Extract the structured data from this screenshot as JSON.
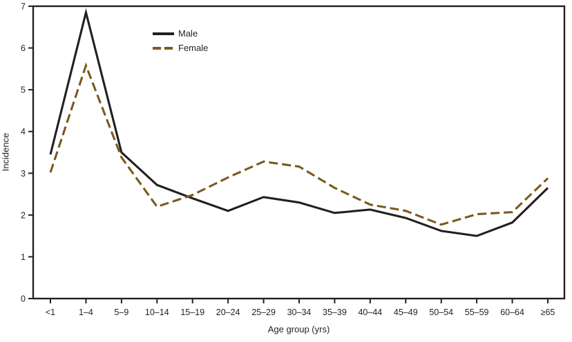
{
  "chart_data": {
    "type": "line",
    "title": "",
    "xlabel": "Age group (yrs)",
    "ylabel": "Incidence",
    "ylim": [
      0,
      7
    ],
    "yticks": [
      0,
      1,
      2,
      3,
      4,
      5,
      6,
      7
    ],
    "grid": false,
    "legend_position": "upper-left-inside",
    "categories": [
      "<1",
      "1–4",
      "5–9",
      "10–14",
      "15–19",
      "20–24",
      "25–29",
      "30–34",
      "35–39",
      "40–44",
      "45–49",
      "50–54",
      "55–59",
      "60–64",
      "≥65"
    ],
    "series": [
      {
        "name": "Male",
        "style": "solid",
        "color": "#231f20",
        "values": [
          3.45,
          6.85,
          3.5,
          2.72,
          2.4,
          2.1,
          2.43,
          2.3,
          2.05,
          2.13,
          1.93,
          1.62,
          1.5,
          1.82,
          2.65
        ]
      },
      {
        "name": "Female",
        "style": "dashed",
        "color": "#7a5a1d",
        "values": [
          3.02,
          5.58,
          3.38,
          2.2,
          2.48,
          2.9,
          3.28,
          3.16,
          2.65,
          2.25,
          2.1,
          1.77,
          2.02,
          2.07,
          2.88
        ]
      }
    ]
  },
  "colors": {
    "axis": "#231f20",
    "text": "#231f20",
    "background": "#ffffff"
  }
}
